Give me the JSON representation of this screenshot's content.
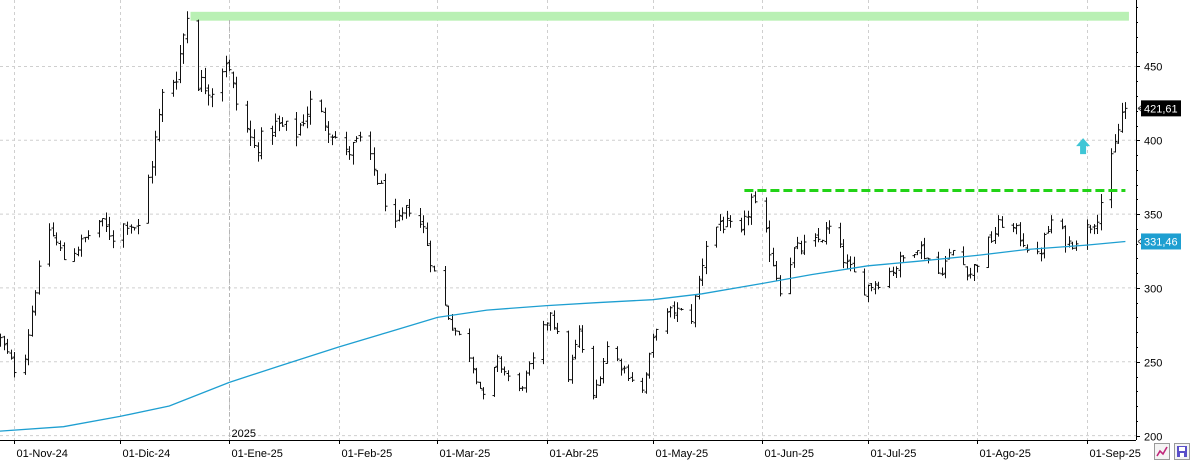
{
  "chart_data": {
    "type": "ohlc-bar",
    "title": "",
    "xlabel": "",
    "ylabel": "",
    "ylim": [
      197,
      495
    ],
    "y_ticks": [
      200,
      250,
      300,
      350,
      400,
      450
    ],
    "x_ticks": [
      {
        "label": "01-Nov-24",
        "date": "2024-11-01"
      },
      {
        "label": "01-Dic-24",
        "date": "2024-12-01"
      },
      {
        "label": "01-Ene-25",
        "date": "2025-01-01"
      },
      {
        "label": "01-Feb-25",
        "date": "2025-02-01"
      },
      {
        "label": "01-Mar-25",
        "date": "2025-03-01"
      },
      {
        "label": "01-Abr-25",
        "date": "2025-04-01"
      },
      {
        "label": "01-May-25",
        "date": "2025-05-01"
      },
      {
        "label": "01-Jun-25",
        "date": "2025-06-01"
      },
      {
        "label": "01-Jul-25",
        "date": "2025-07-01"
      },
      {
        "label": "01-Ago-25",
        "date": "2025-08-01"
      },
      {
        "label": "01-Sep-25",
        "date": "2025-09-01"
      }
    ],
    "year_marker": {
      "label": "2025",
      "date": "2025-01-01"
    },
    "x_start": "2024-10-28",
    "x_end": "2025-09-15",
    "grid": true,
    "price_path": [
      [
        "2024-10-28",
        265
      ],
      [
        "2024-11-01",
        245
      ],
      [
        "2024-11-04",
        255
      ],
      [
        "2024-11-07",
        300
      ],
      [
        "2024-11-11",
        340
      ],
      [
        "2024-11-15",
        320
      ],
      [
        "2024-11-20",
        330
      ],
      [
        "2024-11-25",
        345
      ],
      [
        "2024-11-29",
        335
      ],
      [
        "2024-12-03",
        345
      ],
      [
        "2024-12-06",
        340
      ],
      [
        "2024-12-10",
        385
      ],
      [
        "2024-12-13",
        430
      ],
      [
        "2024-12-17",
        445
      ],
      [
        "2024-12-20",
        485
      ],
      [
        "2024-12-23",
        440
      ],
      [
        "2024-12-27",
        435
      ],
      [
        "2024-12-31",
        455
      ],
      [
        "2025-01-03",
        425
      ],
      [
        "2025-01-08",
        395
      ],
      [
        "2025-01-14",
        410
      ],
      [
        "2025-01-20",
        405
      ],
      [
        "2025-01-24",
        425
      ],
      [
        "2025-01-29",
        410
      ],
      [
        "2025-02-03",
        390
      ],
      [
        "2025-02-07",
        400
      ],
      [
        "2025-02-11",
        380
      ],
      [
        "2025-02-17",
        340
      ],
      [
        "2025-02-21",
        355
      ],
      [
        "2025-02-25",
        340
      ],
      [
        "2025-03-01",
        300
      ],
      [
        "2025-03-05",
        275
      ],
      [
        "2025-03-10",
        255
      ],
      [
        "2025-03-14",
        225
      ],
      [
        "2025-03-18",
        250
      ],
      [
        "2025-03-24",
        230
      ],
      [
        "2025-03-28",
        250
      ],
      [
        "2025-04-02",
        285
      ],
      [
        "2025-04-07",
        240
      ],
      [
        "2025-04-10",
        270
      ],
      [
        "2025-04-14",
        225
      ],
      [
        "2025-04-18",
        260
      ],
      [
        "2025-04-23",
        245
      ],
      [
        "2025-04-28",
        230
      ],
      [
        "2025-05-02",
        275
      ],
      [
        "2025-05-07",
        285
      ],
      [
        "2025-05-12",
        280
      ],
      [
        "2025-05-16",
        330
      ],
      [
        "2025-05-20",
        345
      ],
      [
        "2025-05-26",
        335
      ],
      [
        "2025-05-29",
        360
      ],
      [
        "2025-06-02",
        335
      ],
      [
        "2025-06-06",
        300
      ],
      [
        "2025-06-10",
        325
      ],
      [
        "2025-06-16",
        330
      ],
      [
        "2025-06-20",
        340
      ],
      [
        "2025-06-25",
        315
      ],
      [
        "2025-06-30",
        300
      ],
      [
        "2025-07-04",
        305
      ],
      [
        "2025-07-09",
        315
      ],
      [
        "2025-07-15",
        330
      ],
      [
        "2025-07-21",
        310
      ],
      [
        "2025-07-25",
        325
      ],
      [
        "2025-07-30",
        310
      ],
      [
        "2025-08-04",
        330
      ],
      [
        "2025-08-08",
        345
      ],
      [
        "2025-08-13",
        335
      ],
      [
        "2025-08-18",
        320
      ],
      [
        "2025-08-22",
        345
      ],
      [
        "2025-08-27",
        330
      ],
      [
        "2025-09-01",
        340
      ],
      [
        "2025-09-04",
        350
      ],
      [
        "2025-09-08",
        385
      ],
      [
        "2025-09-11",
        418
      ],
      [
        "2025-09-12",
        421.61
      ]
    ],
    "series": [
      {
        "name": "",
        "color": "#1e9fd1",
        "values": [
          [
            "2024-10-28",
            203
          ],
          [
            "2024-11-15",
            206
          ],
          [
            "2024-12-01",
            213
          ],
          [
            "2024-12-15",
            220
          ],
          [
            "2025-01-01",
            236
          ],
          [
            "2025-01-15",
            247
          ],
          [
            "2025-02-01",
            260
          ],
          [
            "2025-02-15",
            270
          ],
          [
            "2025-03-01",
            280
          ],
          [
            "2025-03-15",
            285
          ],
          [
            "2025-04-01",
            288
          ],
          [
            "2025-04-15",
            290
          ],
          [
            "2025-05-01",
            292
          ],
          [
            "2025-05-15",
            296
          ],
          [
            "2025-06-01",
            303
          ],
          [
            "2025-06-15",
            309
          ],
          [
            "2025-07-01",
            315
          ],
          [
            "2025-07-15",
            318
          ],
          [
            "2025-08-01",
            322
          ],
          [
            "2025-08-15",
            326
          ],
          [
            "2025-09-01",
            329
          ],
          [
            "2025-09-12",
            331.46
          ]
        ]
      }
    ],
    "annotations": {
      "resistance_band": {
        "y_from": 481,
        "y_to": 487,
        "x_from": "2024-12-21",
        "x_to": "2025-09-13",
        "color": "#b9f0b4"
      },
      "breakout_line": {
        "y": 366,
        "x_from": "2025-05-27",
        "x_to": "2025-09-12",
        "color": "#22d317",
        "style": "dashed"
      },
      "arrow_up": {
        "y": 396,
        "date": "2025-08-31",
        "color": "#3fc6d6"
      }
    },
    "last_price": {
      "value": 421.61,
      "label": "421,61",
      "color": "#000000"
    },
    "ma_label": {
      "value": 331.46,
      "label": "331,46",
      "color": "#1e9fd1"
    }
  },
  "toolbar": {
    "icons": [
      "chart-icon",
      "save-icon"
    ]
  }
}
